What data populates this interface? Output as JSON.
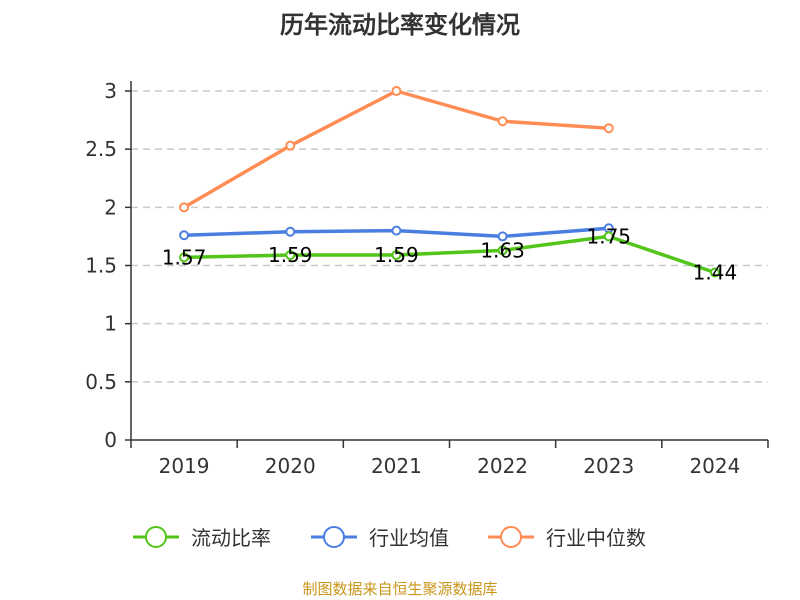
{
  "chart_data": {
    "type": "line",
    "title": "历年流动比率变化情况",
    "categories": [
      "2019",
      "2020",
      "2021",
      "2022",
      "2023",
      "2024"
    ],
    "ylim": [
      0,
      3
    ],
    "yticks": [
      "0",
      "0.5",
      "1",
      "1.5",
      "2",
      "2.5",
      "3"
    ],
    "grid": true,
    "legend_position": "bottom",
    "series": [
      {
        "name": "流动比率",
        "color": "#52c41a",
        "values": [
          1.57,
          1.59,
          1.59,
          1.63,
          1.75,
          1.44
        ],
        "labels": [
          "1.57",
          "1.59",
          "1.59",
          "1.63",
          "1.75",
          "1.44"
        ]
      },
      {
        "name": "行业均值",
        "color": "#4a7ee0",
        "values": [
          1.76,
          1.79,
          1.8,
          1.75,
          1.82,
          null
        ]
      },
      {
        "name": "行业中位数",
        "color": "#ff8c55",
        "values": [
          2.0,
          2.53,
          3.0,
          2.74,
          2.68,
          null
        ]
      }
    ]
  },
  "source": "制图数据来自恒生聚源数据库"
}
